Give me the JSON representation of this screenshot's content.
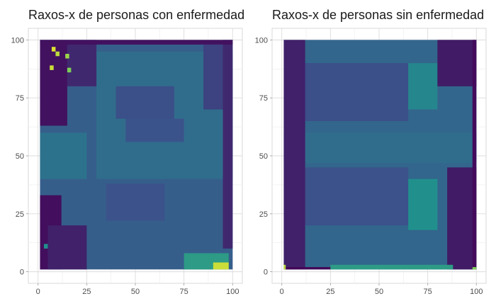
{
  "chart_data": [
    {
      "type": "heatmap",
      "title": "Raxos-x de personas con enfermedad",
      "xlabel": "",
      "ylabel": "",
      "xlim": [
        0,
        100
      ],
      "ylim": [
        0,
        100
      ],
      "x_ticks": [
        0,
        25,
        50,
        75,
        100
      ],
      "y_ticks": [
        0,
        25,
        50,
        75,
        100
      ],
      "grid": true,
      "legend": "none",
      "colormap": [
        "#440154",
        "#3b528b",
        "#21908d",
        "#5dc963",
        "#fde725"
      ],
      "value_range": [
        0,
        1
      ],
      "image_extent": {
        "x": [
          1,
          100
        ],
        "y": [
          1,
          100
        ]
      },
      "regions": [
        {
          "x": [
            1,
            100
          ],
          "y": [
            1,
            100
          ],
          "value": 0.3
        },
        {
          "x": [
            30,
            100
          ],
          "y": [
            40,
            95
          ],
          "value": 0.36
        },
        {
          "x": [
            45,
            75
          ],
          "y": [
            56,
            66
          ],
          "value": 0.26
        },
        {
          "x": [
            40,
            70
          ],
          "y": [
            66,
            80
          ],
          "value": 0.24
        },
        {
          "x": [
            35,
            65
          ],
          "y": [
            22,
            38
          ],
          "value": 0.25
        },
        {
          "x": [
            1,
            15
          ],
          "y": [
            63,
            100
          ],
          "value": 0.05
        },
        {
          "x": [
            15,
            30
          ],
          "y": [
            80,
            100
          ],
          "value": 0.12
        },
        {
          "x": [
            1,
            12
          ],
          "y": [
            1,
            33
          ],
          "value": 0.04
        },
        {
          "x": [
            5,
            25
          ],
          "y": [
            1,
            20
          ],
          "value": 0.1
        },
        {
          "x": [
            95,
            100
          ],
          "y": [
            10,
            100
          ],
          "value": 0.12
        },
        {
          "x": [
            1,
            100
          ],
          "y": [
            98,
            100
          ],
          "value": 0.05
        },
        {
          "x": [
            85,
            95
          ],
          "y": [
            70,
            98
          ],
          "value": 0.2
        },
        {
          "x": [
            1,
            25
          ],
          "y": [
            40,
            60
          ],
          "value": 0.38
        },
        {
          "x": [
            75,
            98
          ],
          "y": [
            1,
            8
          ],
          "value": 0.55
        },
        {
          "x": [
            90,
            98
          ],
          "y": [
            1,
            4
          ],
          "value": 0.92
        },
        {
          "x": [
            7,
            9
          ],
          "y": [
            95,
            97
          ],
          "value": 0.95
        },
        {
          "x": [
            9,
            11
          ],
          "y": [
            93,
            95
          ],
          "value": 0.9
        },
        {
          "x": [
            6,
            8
          ],
          "y": [
            87,
            89
          ],
          "value": 0.92
        },
        {
          "x": [
            14,
            16
          ],
          "y": [
            92,
            94
          ],
          "value": 0.85
        },
        {
          "x": [
            15,
            17
          ],
          "y": [
            86,
            88
          ],
          "value": 0.8
        },
        {
          "x": [
            3,
            5
          ],
          "y": [
            10,
            12
          ],
          "value": 0.5
        }
      ]
    },
    {
      "type": "heatmap",
      "title": "Raxos-x de personas sin enfermedad",
      "xlabel": "",
      "ylabel": "",
      "xlim": [
        0,
        100
      ],
      "ylim": [
        0,
        100
      ],
      "x_ticks": [
        0,
        25,
        50,
        75,
        100
      ],
      "y_ticks": [
        0,
        25,
        50,
        75,
        100
      ],
      "grid": true,
      "legend": "none",
      "colormap": [
        "#440154",
        "#3b528b",
        "#21908d",
        "#5dc963",
        "#fde725"
      ],
      "value_range": [
        0,
        1
      ],
      "image_extent": {
        "x": [
          1,
          100
        ],
        "y": [
          1,
          100
        ]
      },
      "regions": [
        {
          "x": [
            1,
            100
          ],
          "y": [
            1,
            100
          ],
          "value": 0.33
        },
        {
          "x": [
            10,
            65
          ],
          "y": [
            65,
            90
          ],
          "value": 0.24
        },
        {
          "x": [
            10,
            65
          ],
          "y": [
            20,
            45
          ],
          "value": 0.25
        },
        {
          "x": [
            1,
            100
          ],
          "y": [
            47,
            60
          ],
          "value": 0.36
        },
        {
          "x": [
            65,
            80
          ],
          "y": [
            70,
            90
          ],
          "value": 0.46
        },
        {
          "x": [
            65,
            80
          ],
          "y": [
            18,
            40
          ],
          "value": 0.5
        },
        {
          "x": [
            1,
            12
          ],
          "y": [
            1,
            100
          ],
          "value": 0.1
        },
        {
          "x": [
            80,
            100
          ],
          "y": [
            80,
            100
          ],
          "value": 0.08
        },
        {
          "x": [
            85,
            100
          ],
          "y": [
            1,
            45
          ],
          "value": 0.08
        },
        {
          "x": [
            1,
            25
          ],
          "y": [
            1,
            2
          ],
          "value": 0.02
        },
        {
          "x": [
            25,
            88
          ],
          "y": [
            1,
            3
          ],
          "value": 0.55
        },
        {
          "x": [
            98,
            100
          ],
          "y": [
            1,
            100
          ],
          "value": 0.03
        },
        {
          "x": [
            1,
            2
          ],
          "y": [
            1,
            3
          ],
          "value": 0.9
        },
        {
          "x": [
            98,
            100
          ],
          "y": [
            1,
            2
          ],
          "value": 0.8
        }
      ]
    }
  ]
}
